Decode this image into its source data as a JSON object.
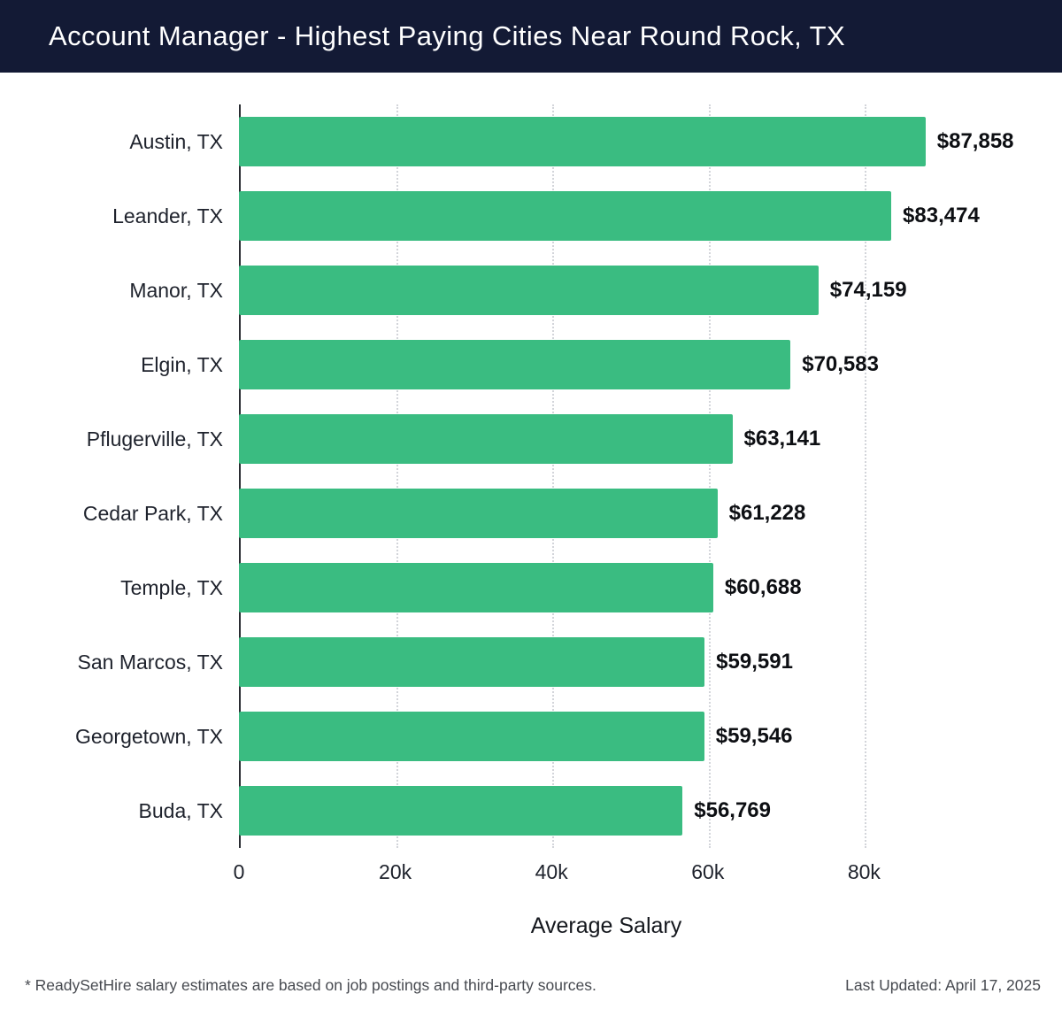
{
  "header": {
    "title": "Account Manager - Highest Paying Cities Near Round Rock, TX",
    "bg_color": "#131a35",
    "text_color": "#ffffff"
  },
  "chart_data": {
    "type": "bar",
    "orientation": "horizontal",
    "title": "Account Manager - Highest Paying Cities Near Round Rock, TX",
    "categories": [
      "Austin, TX",
      "Leander, TX",
      "Manor, TX",
      "Elgin, TX",
      "Pflugerville, TX",
      "Cedar Park, TX",
      "Temple, TX",
      "San Marcos, TX",
      "Georgetown, TX",
      "Buda, TX"
    ],
    "values": [
      87858,
      83474,
      74159,
      70583,
      63141,
      61228,
      60688,
      59591,
      59546,
      56769
    ],
    "value_labels": [
      "$87,858",
      "$83,474",
      "$74,159",
      "$70,583",
      "$63,141",
      "$61,228",
      "$60,688",
      "$59,591",
      "$59,546",
      "$56,769"
    ],
    "xlabel": "Average Salary",
    "ylabel": "",
    "xlim": [
      0,
      94000
    ],
    "x_ticks": [
      {
        "value": 0,
        "label": "0"
      },
      {
        "value": 20000,
        "label": "20k"
      },
      {
        "value": 40000,
        "label": "40k"
      },
      {
        "value": 60000,
        "label": "60k"
      },
      {
        "value": 80000,
        "label": "80k"
      }
    ],
    "grid": "vertical-dotted",
    "legend": "none",
    "bar_color": "#3abc81"
  },
  "footer": {
    "note": "* ReadySetHire salary estimates are based on job postings and third-party sources.",
    "last_updated": "Last Updated: April 17, 2025"
  }
}
